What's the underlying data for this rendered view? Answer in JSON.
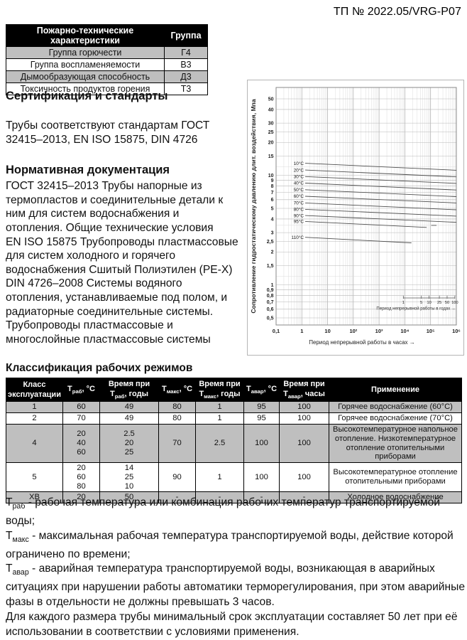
{
  "doc_header": "ТП № 2022.05/VRG-P07",
  "colors": {
    "table_header_bg": "#000000",
    "table_row_shade": "#bfbfbf",
    "chart_line": "#4f4f4f",
    "grid_minor": "#d8d8d8",
    "grid_labeled": "#b7b7b7",
    "grid_major": "#ababab",
    "chart_border": "#8a8a8a"
  },
  "fire_table": {
    "headers": [
      "Пожарно-технические характеристики",
      "Группа"
    ],
    "rows": [
      {
        "label": "Группа горючести",
        "group": "Г4"
      },
      {
        "label": "Группа воспламеняемости",
        "group": "В3"
      },
      {
        "label": "Дымообразующая способность",
        "group": "Д3"
      },
      {
        "label": "Токсичность продуктов горения",
        "group": "Т3"
      }
    ]
  },
  "certification": {
    "heading": "Сертификация и стандарты",
    "body": "Трубы соответствуют стандартам ГОСТ\n32415–2013, EN ISO 15875, DIN 4726"
  },
  "normative": {
    "heading": "Нормативная документация",
    "body": "ГОСТ 32415–2013 Трубы напорные из\nтермопластов и соединительные детали к\nним для систем водоснабжения и\nотопления. Общие технические условия\nEN ISO 15875 Трубопроводы пластмассовые\nдля систем холодного и горячего\nводоснабжения Сшитый Полиэтилен (PE-X)\nDIN 4726–2008 Системы водяного\nотопления, устанавливаемые под полом, и\nрадиаторные соединительные системы.\nТрубопроводы пластмассовые и\nмногослойные пластмассовые системы"
  },
  "chart_data": {
    "type": "line",
    "title": "",
    "xlabel": "Период непрерывной работы в часах →",
    "ylabel": "Сопротивление гидростатическому давлению длит. воздействия, Мпа",
    "x_scale": "log",
    "y_scale": "log",
    "xlim": [
      0.1,
      1000000
    ],
    "ylim": [
      0.5,
      50
    ],
    "grid": true,
    "legend_position": "inline-left",
    "x_ticks": [
      {
        "v": 0.1,
        "label": "0,1"
      },
      {
        "v": 1,
        "label": "1"
      },
      {
        "v": 10,
        "label": "10"
      },
      {
        "v": 100,
        "label": "10²"
      },
      {
        "v": 1000,
        "label": "10³"
      },
      {
        "v": 10000,
        "label": "10⁴"
      },
      {
        "v": 100000,
        "label": "10⁵"
      },
      {
        "v": 1000000,
        "label": "10⁶"
      }
    ],
    "y_ticks": [
      {
        "v": 50,
        "label": "50"
      },
      {
        "v": 40,
        "label": "40"
      },
      {
        "v": 30,
        "label": "30"
      },
      {
        "v": 25,
        "label": "25"
      },
      {
        "v": 20,
        "label": "20"
      },
      {
        "v": 15,
        "label": "15"
      },
      {
        "v": 10,
        "label": "10"
      },
      {
        "v": 9,
        "label": "9"
      },
      {
        "v": 8,
        "label": "8"
      },
      {
        "v": 7,
        "label": "7"
      },
      {
        "v": 6,
        "label": "6"
      },
      {
        "v": 5,
        "label": "5"
      },
      {
        "v": 4,
        "label": "4"
      },
      {
        "v": 3,
        "label": "3"
      },
      {
        "v": 2.5,
        "label": "2,5"
      },
      {
        "v": 2,
        "label": "2"
      },
      {
        "v": 1.5,
        "label": "1,5"
      },
      {
        "v": 1,
        "label": "1"
      },
      {
        "v": 0.9,
        "label": "0,9"
      },
      {
        "v": 0.8,
        "label": "0,8"
      },
      {
        "v": 0.7,
        "label": "0,7"
      },
      {
        "v": 0.6,
        "label": "0,6"
      },
      {
        "v": 0.5,
        "label": "0,5"
      }
    ],
    "y_minor": [
      12,
      3.5,
      1.2
    ],
    "years_axis": {
      "label": "Период непрерывной работы в годах →",
      "ticks": [
        1,
        5,
        10,
        25,
        50,
        100
      ],
      "hours_per_year": 8760
    },
    "series": [
      {
        "label": "10°C",
        "points": [
          [
            1.35,
            12.9
          ],
          [
            1000000,
            11.15
          ]
        ]
      },
      {
        "label": "20°C",
        "points": [
          [
            1.35,
            11.2
          ],
          [
            1000000,
            9.7
          ]
        ]
      },
      {
        "label": "30°C",
        "points": [
          [
            1.35,
            9.75
          ],
          [
            1000000,
            8.45
          ]
        ]
      },
      {
        "label": "40°C",
        "points": [
          [
            1.35,
            8.5
          ],
          [
            1000000,
            7.35
          ]
        ]
      },
      {
        "label": "50°C",
        "points": [
          [
            1.35,
            7.4
          ],
          [
            1000000,
            6.4
          ]
        ]
      },
      {
        "label": "60°C",
        "points": [
          [
            1.35,
            6.45
          ],
          [
            1000000,
            5.6
          ]
        ]
      },
      {
        "label": "70°C",
        "points": [
          [
            1.35,
            5.6
          ],
          [
            1000000,
            4.85
          ]
        ]
      },
      {
        "label": "80°C",
        "points": [
          [
            1.35,
            4.9
          ],
          [
            1000000,
            4.25
          ]
        ]
      },
      {
        "label": "90°C",
        "points": [
          [
            1.35,
            4.3
          ],
          [
            1000000,
            3.73
          ]
        ]
      },
      {
        "label": "95°C",
        "points": [
          [
            1.35,
            3.8
          ],
          [
            70000,
            3.35
          ]
        ]
      },
      {
        "label": "",
        "points": [
          [
            105000,
            3.5
          ],
          [
            170000,
            3.5
          ]
        ]
      },
      {
        "label": "110°C",
        "points": [
          [
            1.35,
            2.72
          ],
          [
            18000,
            2.42
          ]
        ]
      }
    ]
  },
  "class_section": {
    "heading": "Классификация рабочих режимов",
    "table": {
      "headers": [
        {
          "lines": [
            [
              "Класс"
            ],
            [
              "эксплуатации"
            ]
          ]
        },
        {
          "lines": [
            [
              {
                "t": "Т",
                "s": "раб"
              },
              ", °С"
            ]
          ]
        },
        {
          "lines": [
            [
              "Время при"
            ],
            [
              {
                "t": "Т",
                "s": "раб"
              },
              ", годы"
            ]
          ]
        },
        {
          "lines": [
            [
              {
                "t": "Т",
                "s": "макс"
              },
              ", °С"
            ]
          ]
        },
        {
          "lines": [
            [
              "Время при"
            ],
            [
              {
                "t": "Т",
                "s": "макс"
              },
              ", годы"
            ]
          ]
        },
        {
          "lines": [
            [
              {
                "t": "Т",
                "s": "авар"
              },
              ", °С"
            ]
          ]
        },
        {
          "lines": [
            [
              "Время при"
            ],
            [
              {
                "t": "Т",
                "s": "авар"
              },
              ", часы"
            ]
          ]
        },
        {
          "lines": [
            [
              "Применение"
            ]
          ]
        }
      ],
      "rows": [
        {
          "cls": "1",
          "trab": "60",
          "vrab": "49",
          "tmax": "80",
          "vmax": "1",
          "tavar": "95",
          "vavar": "100",
          "app": "Горячее водоснабжение (60°С)"
        },
        {
          "cls": "2",
          "trab": "70",
          "vrab": "49",
          "tmax": "80",
          "vmax": "1",
          "tavar": "95",
          "vavar": "100",
          "app": "Горячее водоснабжение (70°С)"
        },
        {
          "cls": "4",
          "trab": "20\n40\n60",
          "vrab": "2.5\n20\n25",
          "tmax": "70",
          "vmax": "2.5",
          "tavar": "100",
          "vavar": "100",
          "app": "Высокотемпературное напольное отопление. Низкотемпературное отопление отопительными приборами"
        },
        {
          "cls": "5",
          "trab": "20\n60\n80",
          "vrab": "14\n25\n10",
          "tmax": "90",
          "vmax": "1",
          "tavar": "100",
          "vavar": "100",
          "app": "Высокотемпературное отопление отопительными приборами"
        },
        {
          "cls": "ХВ",
          "trab": "20",
          "vrab": "50",
          "tmax": "-",
          "vmax": "-",
          "tavar": "-",
          "vavar": "-",
          "app": "Холодное водоснабжение"
        }
      ]
    }
  },
  "footnotes": {
    "items": [
      {
        "t": "Т",
        "sub": "раб",
        "text": " - рабочая температура или комбинация рабочих температур транспортируемой воды;"
      },
      {
        "t": "Т",
        "sub": "макс",
        "text": " - максимальная рабочая температура транспортируемой воды, действие которой ограничено по времени;"
      },
      {
        "t": "Т",
        "sub": "авар",
        "text": " - аварийная температура транспортируемой воды, возникающая в аварийных ситуациях при нарушении работы автоматики терморегулирования, при этом аварийные фазы в отдельности не должны превышать 3 часов."
      },
      {
        "text": "Для каждого размера трубы минимальный срок эксплуатации составляет 50 лет при её использовании в соответствии с условиями применения."
      }
    ]
  }
}
